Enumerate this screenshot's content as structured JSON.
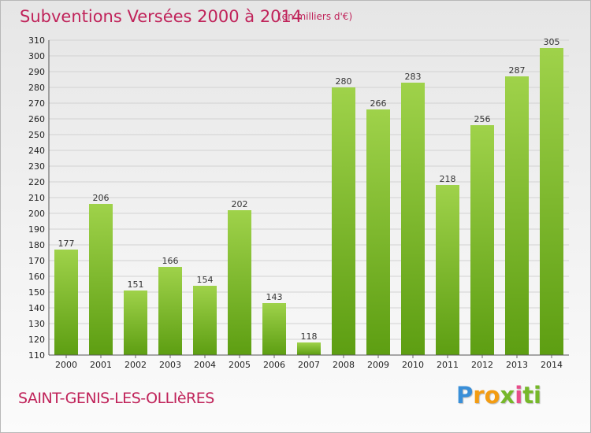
{
  "header": {
    "title": "Subventions Versées 2000 à 2014",
    "unit": "(en milliers d'€)"
  },
  "footer": {
    "place": "SAINT-GENIS-LES-OLLIèRES",
    "logo": [
      "P",
      "r",
      "o",
      "x",
      "i",
      "ti"
    ]
  },
  "chart_data": {
    "type": "bar",
    "title": "Subventions Versées 2000 à 2014",
    "subtitle": "(en milliers d'€)",
    "xlabel": "",
    "ylabel": "",
    "categories": [
      "2000",
      "2001",
      "2002",
      "2003",
      "2004",
      "2005",
      "2006",
      "2007",
      "2008",
      "2009",
      "2010",
      "2011",
      "2012",
      "2013",
      "2014"
    ],
    "values": [
      177,
      206,
      151,
      166,
      154,
      202,
      143,
      118,
      280,
      266,
      283,
      218,
      256,
      287,
      305
    ],
    "ylim": [
      110,
      310
    ],
    "ytick_step": 10,
    "grid": true,
    "legend": "none",
    "bar_color_top": "#9fd24a",
    "bar_color_bottom": "#5d9e12"
  }
}
